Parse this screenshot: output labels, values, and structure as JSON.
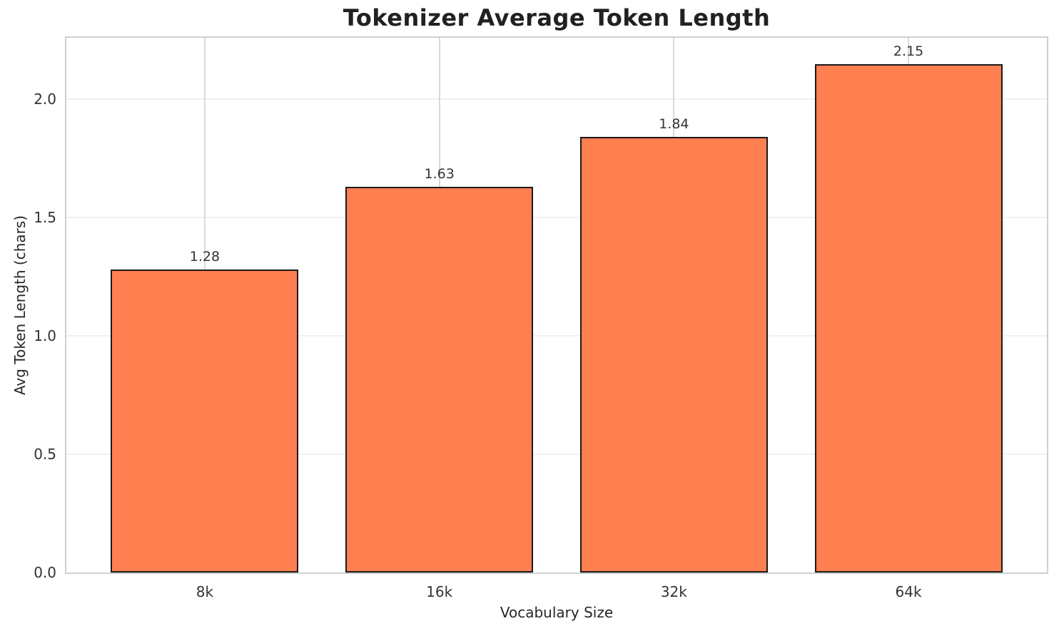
{
  "chart_data": {
    "type": "bar",
    "title": "Tokenizer Average Token Length",
    "xlabel": "Vocabulary Size",
    "ylabel": "Avg Token Length (chars)",
    "categories": [
      "8k",
      "16k",
      "32k",
      "64k"
    ],
    "values": [
      1.28,
      1.63,
      1.84,
      2.15
    ],
    "bar_labels": [
      "1.28",
      "1.63",
      "1.84",
      "2.15"
    ],
    "yticks": [
      0.0,
      0.5,
      1.0,
      1.5,
      2.0
    ],
    "ytick_labels": [
      "0.0",
      "0.5",
      "1.0",
      "1.5",
      "2.0"
    ],
    "ylim": [
      0,
      2.26
    ],
    "grid": true,
    "legend_position": "none",
    "colors": {
      "bar_fill": "#FF7F50",
      "bar_edge": "#1a1a1a",
      "grid_horizontal": "#f0f0f0",
      "grid_vertical": "#d9d9d9",
      "spine": "#cfcfcf",
      "title_text": "#212121",
      "tick_text": "#333333"
    }
  }
}
